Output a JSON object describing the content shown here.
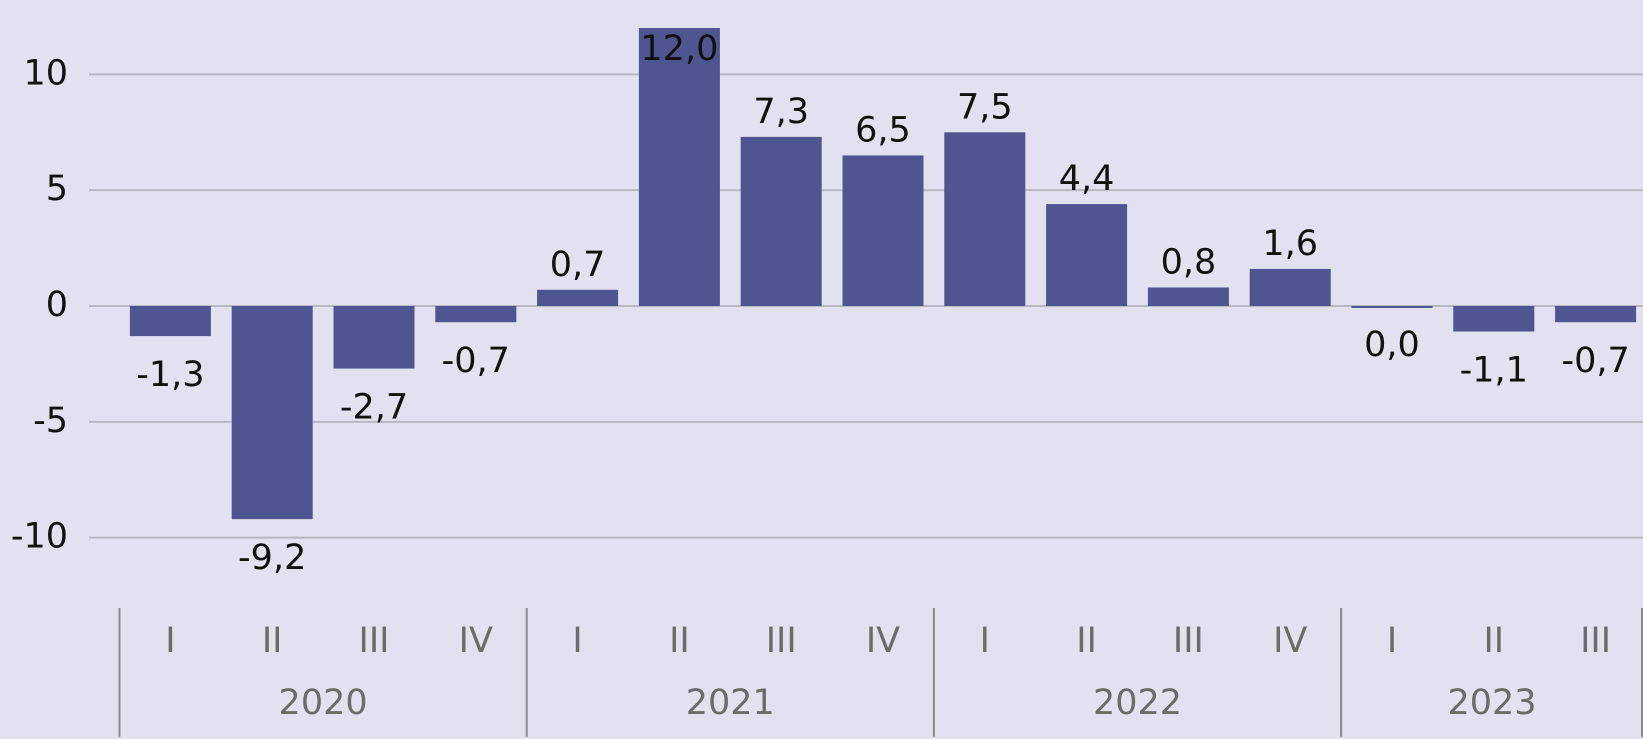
{
  "chart_data": {
    "type": "bar",
    "groups": [
      {
        "name": "2020",
        "categories": [
          "I",
          "II",
          "III",
          "IV"
        ]
      },
      {
        "name": "2021",
        "categories": [
          "I",
          "II",
          "III",
          "IV"
        ]
      },
      {
        "name": "2022",
        "categories": [
          "I",
          "II",
          "III",
          "IV"
        ]
      },
      {
        "name": "2023",
        "categories": [
          "I",
          "II",
          "III"
        ]
      }
    ],
    "values": [
      -1.3,
      -9.2,
      -2.7,
      -0.7,
      0.7,
      12.0,
      7.3,
      6.5,
      7.5,
      4.4,
      0.8,
      1.6,
      0.0,
      -1.1,
      -0.7
    ],
    "value_labels": [
      "-1,3",
      "-9,2",
      "-2,7",
      "-0,7",
      "0,7",
      "12,0",
      "7,3",
      "6,5",
      "7,5",
      "4,4",
      "0,8",
      "1,6",
      "0,0",
      "-1,1",
      "-0,7"
    ],
    "color": "#4f5591",
    "ylim": [
      -12,
      12
    ],
    "yticks": [
      -10,
      -5,
      0,
      5,
      10
    ],
    "grid": true
  }
}
